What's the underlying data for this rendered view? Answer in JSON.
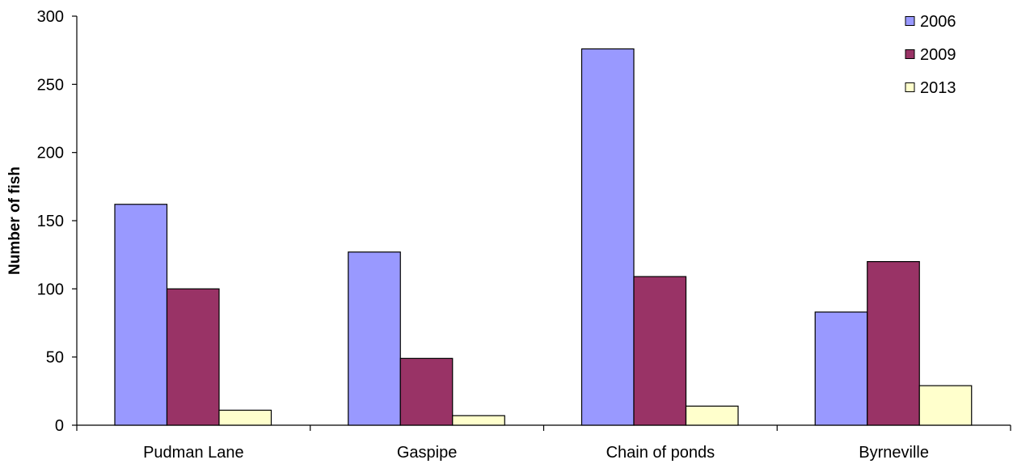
{
  "chart_data": {
    "type": "bar",
    "title": "",
    "xlabel": "",
    "ylabel": "Number of fish",
    "categories": [
      "Pudman Lane",
      "Gaspipe",
      "Chain of ponds",
      "Byrneville"
    ],
    "series": [
      {
        "name": "2006",
        "color": "#9999ff",
        "values": [
          162,
          127,
          276,
          83
        ]
      },
      {
        "name": "2009",
        "color": "#993366",
        "values": [
          100,
          49,
          109,
          120
        ]
      },
      {
        "name": "2013",
        "color": "#ffffcc",
        "values": [
          11,
          7,
          14,
          29
        ]
      }
    ],
    "ylim": [
      0,
      300
    ],
    "yticks": [
      0,
      50,
      100,
      150,
      200,
      250,
      300
    ],
    "grid": false,
    "legend_position": "top-right"
  }
}
